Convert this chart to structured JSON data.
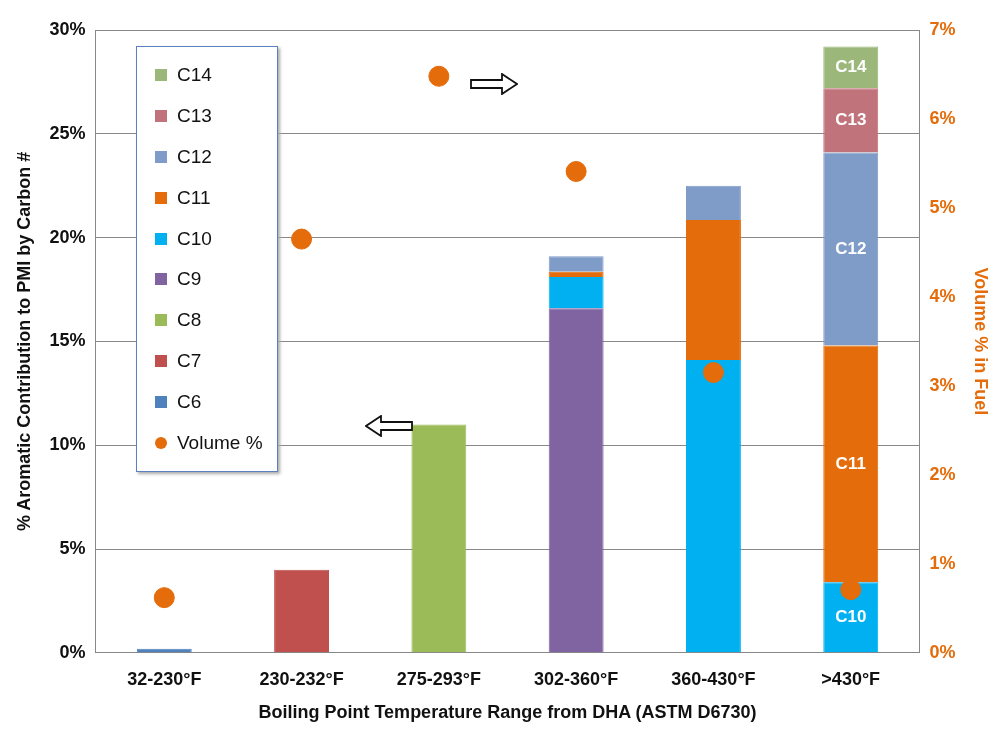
{
  "chart_data": {
    "type": "bar",
    "stacked": true,
    "xlabel": "Boiling Point Temperature Range from DHA (ASTM D6730)",
    "ylabel": "% Aromatic Contribution to PMI by Carbon #",
    "y2label": "Volume % in Fuel",
    "categories": [
      "32-230°F",
      "230-232°F",
      "275-293°F",
      "302-360°F",
      "360-430°F",
      ">430°F"
    ],
    "series": [
      {
        "name": "C6",
        "color": "#4f81bd",
        "values": [
          0.2,
          null,
          null,
          null,
          null,
          null
        ]
      },
      {
        "name": "C7",
        "color": "#c0504d",
        "values": [
          null,
          4.0,
          null,
          null,
          null,
          null
        ]
      },
      {
        "name": "C8",
        "color": "#9bbb59",
        "values": [
          null,
          null,
          11.0,
          null,
          null,
          null
        ]
      },
      {
        "name": "C9",
        "color": "#8064a2",
        "values": [
          null,
          null,
          null,
          16.6,
          null,
          null
        ]
      },
      {
        "name": "C10",
        "color": "#00b0f0",
        "values": [
          null,
          null,
          null,
          1.5,
          14.1,
          3.4
        ],
        "value_labels": [
          null,
          null,
          null,
          null,
          null,
          "C10"
        ]
      },
      {
        "name": "C11",
        "color": "#e46c0a",
        "values": [
          null,
          null,
          null,
          0.25,
          6.75,
          11.4
        ],
        "value_labels": [
          null,
          null,
          null,
          null,
          null,
          "C11"
        ]
      },
      {
        "name": "C12",
        "color": "#7f9bc8",
        "values": [
          null,
          null,
          null,
          0.75,
          1.65,
          9.3
        ],
        "value_labels": [
          null,
          null,
          null,
          null,
          null,
          "C12"
        ]
      },
      {
        "name": "C13",
        "color": "#c0737a",
        "values": [
          null,
          null,
          null,
          null,
          null,
          3.1
        ],
        "value_labels": [
          null,
          null,
          null,
          null,
          null,
          "C13"
        ]
      },
      {
        "name": "C14",
        "color": "#9bb77a",
        "values": [
          null,
          null,
          null,
          null,
          null,
          2.0
        ],
        "value_labels": [
          null,
          null,
          null,
          null,
          null,
          "C14"
        ]
      },
      {
        "name": "Volume %",
        "type": "scatter",
        "axis": "y2",
        "color": "#e46c0a",
        "values": [
          0.62,
          4.65,
          6.48,
          5.41,
          3.15,
          0.71
        ]
      }
    ],
    "ylim": [
      0,
      30
    ],
    "yticks": [
      {
        "value": 0,
        "label": "0%"
      },
      {
        "value": 5,
        "label": "5%"
      },
      {
        "value": 10,
        "label": "10%"
      },
      {
        "value": 15,
        "label": "15%"
      },
      {
        "value": 20,
        "label": "20%"
      },
      {
        "value": 25,
        "label": "25%"
      },
      {
        "value": 30,
        "label": "30%"
      }
    ],
    "y2lim": [
      0,
      7
    ],
    "y2ticks": [
      {
        "value": 0,
        "label": "0%"
      },
      {
        "value": 1,
        "label": "1%"
      },
      {
        "value": 2,
        "label": "2%"
      },
      {
        "value": 3,
        "label": "3%"
      },
      {
        "value": 4,
        "label": "4%"
      },
      {
        "value": 5,
        "label": "5%"
      },
      {
        "value": 6,
        "label": "6%"
      },
      {
        "value": 7,
        "label": "7%"
      }
    ],
    "grid": "y",
    "legend": "top left",
    "marker": "circle"
  }
}
